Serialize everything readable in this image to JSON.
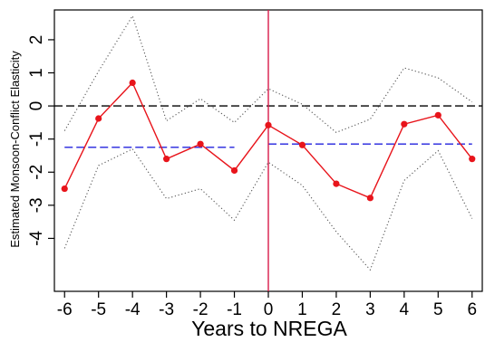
{
  "chart_data": {
    "type": "line",
    "title": "",
    "xlabel": "Years to NREGA",
    "ylabel": "Estimated Monsoon-Conflict Elasticity",
    "xlim": [
      -6.3,
      6.3
    ],
    "ylim": [
      -5.6,
      2.9
    ],
    "x_ticks": [
      -6,
      -5,
      -4,
      -3,
      -2,
      -1,
      0,
      1,
      2,
      3,
      4,
      5,
      6
    ],
    "x_tick_labels": [
      "-6",
      "-5",
      "-4",
      "-3",
      "-2",
      "-1",
      "0",
      "1",
      "2",
      "3",
      "4",
      "5",
      "6"
    ],
    "y_ticks": [
      -4,
      -3,
      -2,
      -1,
      0,
      1,
      2
    ],
    "y_tick_labels": [
      "-4",
      "-3",
      "-2",
      "-1",
      "0",
      "1",
      "2"
    ],
    "grid": false,
    "legend": "none",
    "series": [
      {
        "role": "estimate",
        "color": "#e8141b",
        "style": "solid-with-markers",
        "x": [
          -6,
          -5,
          -4,
          -3,
          -2,
          -1,
          0,
          1,
          2,
          3,
          4,
          5,
          6
        ],
        "y": [
          -2.5,
          -0.38,
          0.7,
          -1.6,
          -1.15,
          -1.95,
          -0.58,
          -1.18,
          -2.35,
          -2.78,
          -0.55,
          -0.28,
          -1.6
        ]
      },
      {
        "role": "upper-ci",
        "color": "#555555",
        "style": "dotted",
        "x": [
          -6,
          -5,
          -4,
          -3,
          -2,
          -1,
          0,
          1,
          2,
          3,
          4,
          5,
          6
        ],
        "y": [
          -0.75,
          1.05,
          2.72,
          -0.45,
          0.22,
          -0.5,
          0.52,
          0.05,
          -0.8,
          -0.4,
          1.15,
          0.85,
          0.12
        ]
      },
      {
        "role": "lower-ci",
        "color": "#555555",
        "style": "dotted",
        "x": [
          -6,
          -5,
          -4,
          -3,
          -2,
          -1,
          0,
          1,
          2,
          3,
          4,
          5,
          6
        ],
        "y": [
          -4.3,
          -1.8,
          -1.3,
          -2.8,
          -2.5,
          -3.45,
          -1.7,
          -2.4,
          -3.8,
          -4.95,
          -2.25,
          -1.35,
          -3.4
        ]
      }
    ],
    "reference_lines": [
      {
        "kind": "horizontal",
        "y": 0,
        "x_from": -6.3,
        "x_to": 6.3,
        "color": "#000000",
        "style": "dashed"
      },
      {
        "kind": "horizontal",
        "y": -1.25,
        "x_from": -6,
        "x_to": -1,
        "color": "#2222dd",
        "style": "dashed"
      },
      {
        "kind": "horizontal",
        "y": -1.15,
        "x_from": 0,
        "x_to": 6,
        "color": "#2222dd",
        "style": "dashed"
      },
      {
        "kind": "vertical",
        "x": 0,
        "color": "#d81b4a",
        "style": "solid"
      }
    ]
  }
}
